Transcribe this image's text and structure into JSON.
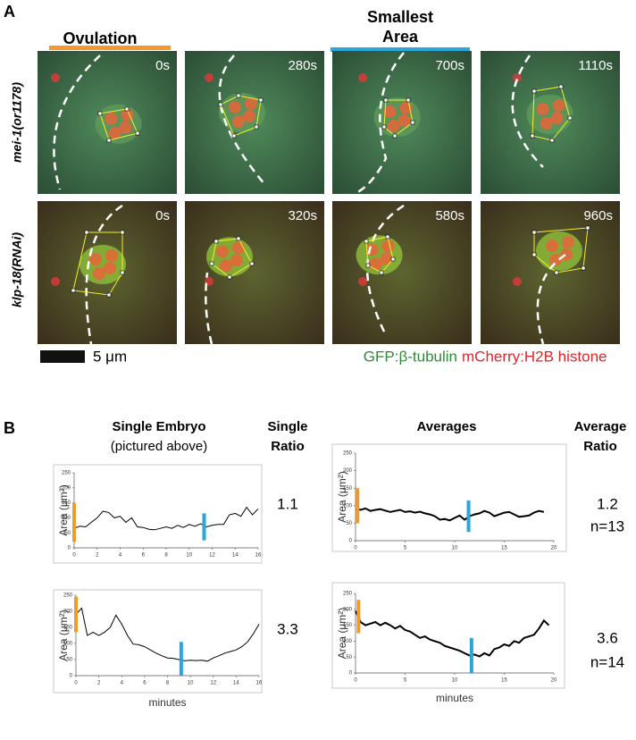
{
  "panel_a": {
    "label": "A",
    "ovulation": "Ovulation",
    "smallest": "Smallest",
    "area": "Area",
    "rows": [
      "mei-1(or1178)",
      "klp-18(RNAi)"
    ],
    "times": [
      [
        "0s",
        "280s",
        "700s",
        "1110s"
      ],
      [
        "0s",
        "320s",
        "580s",
        "960s"
      ]
    ],
    "scale_label": "5 μm",
    "legend_green": "GFP:β-tubulin",
    "legend_red": "mCherry:H2B histone"
  },
  "panel_b": {
    "label": "B",
    "single_title": "Single Embryo",
    "single_sub": "(pictured above)",
    "single_ratio_1": "Single",
    "single_ratio_2": "Ratio",
    "avg_title": "Averages",
    "avg_ratio_1": "Average",
    "avg_ratio_2": "Ratio",
    "ratios": [
      [
        "1.1"
      ],
      [
        "1.2",
        "n=13"
      ],
      [
        "3.3"
      ],
      [
        "3.6",
        "n=14"
      ]
    ]
  },
  "chart_data": [
    {
      "type": "line",
      "ylabel": "Area (μm²)",
      "color": "#000000",
      "x": [
        0,
        0.5,
        1,
        1.5,
        2,
        2.5,
        3,
        3.5,
        4,
        4.5,
        5,
        5.5,
        6,
        6.5,
        7,
        7.5,
        8,
        8.5,
        9,
        9.5,
        10,
        10.5,
        11,
        11.5,
        12,
        12.5,
        13,
        13.5,
        14,
        14.5,
        15,
        15.5,
        16
      ],
      "values": [
        65,
        72,
        70,
        85,
        100,
        122,
        118,
        100,
        105,
        85,
        100,
        70,
        68,
        62,
        60,
        65,
        70,
        65,
        75,
        68,
        78,
        72,
        80,
        70,
        75,
        78,
        78,
        110,
        115,
        105,
        135,
        110,
        130
      ],
      "xlim": [
        0,
        16
      ],
      "xticks": [
        0,
        2,
        4,
        6,
        8,
        10,
        12,
        14,
        16
      ],
      "ylim": [
        0,
        250
      ],
      "yticks": [
        0,
        50,
        100,
        150,
        200,
        250
      ],
      "markers": [
        {
          "x": 0,
          "y": [
            20,
            150
          ],
          "color": "#f39a2e"
        },
        {
          "x": 11.3,
          "y": [
            25,
            115
          ],
          "color": "#2aa6d9"
        }
      ]
    },
    {
      "type": "line",
      "ylabel": "Area (μm²)",
      "color": "#000000",
      "x": [
        0,
        0.5,
        1,
        1.5,
        2,
        2.5,
        3,
        3.5,
        4,
        4.5,
        5,
        5.5,
        6,
        6.5,
        7,
        7.5,
        8,
        8.5,
        9,
        9.5,
        10,
        10.5,
        11,
        11.5,
        12,
        12.5,
        13,
        13.5,
        14,
        14.5,
        15,
        15.5,
        16,
        16.5,
        17,
        17.5,
        18,
        18.5,
        19
      ],
      "values": [
        90,
        88,
        92,
        85,
        88,
        90,
        86,
        82,
        85,
        88,
        82,
        84,
        80,
        83,
        78,
        75,
        70,
        60,
        62,
        58,
        65,
        72,
        60,
        70,
        75,
        78,
        85,
        80,
        70,
        75,
        80,
        82,
        75,
        68,
        70,
        72,
        80,
        85,
        82
      ],
      "xlim": [
        0,
        20
      ],
      "xticks": [
        0,
        5,
        10,
        15,
        20
      ],
      "ylim": [
        0,
        250
      ],
      "yticks": [
        0,
        50,
        100,
        150,
        200,
        250
      ],
      "markers": [
        {
          "x": 0.2,
          "y": [
            50,
            150
          ],
          "color": "#f39a2e"
        },
        {
          "x": 11.4,
          "y": [
            25,
            115
          ],
          "color": "#2aa6d9"
        }
      ]
    },
    {
      "type": "line",
      "ylabel": "Area (μm²)",
      "xlabel": "minutes",
      "color": "#000000",
      "x": [
        0,
        0.5,
        1,
        1.5,
        2,
        2.5,
        3,
        3.5,
        4,
        4.5,
        5,
        5.5,
        6,
        6.5,
        7,
        7.5,
        8,
        8.5,
        9,
        9.5,
        10,
        10.5,
        11,
        11.5,
        12,
        12.5,
        13,
        13.5,
        14,
        14.5,
        15,
        15.5,
        16
      ],
      "values": [
        190,
        210,
        125,
        135,
        125,
        135,
        150,
        188,
        160,
        125,
        98,
        96,
        90,
        80,
        70,
        62,
        55,
        54,
        50,
        46,
        48,
        47,
        48,
        45,
        55,
        62,
        70,
        75,
        80,
        90,
        105,
        130,
        160
      ],
      "xlim": [
        0,
        16
      ],
      "xticks": [
        0,
        2,
        4,
        6,
        8,
        10,
        12,
        14,
        16
      ],
      "ylim": [
        0,
        250
      ],
      "yticks": [
        0,
        50,
        100,
        150,
        200,
        250
      ],
      "markers": [
        {
          "x": 0,
          "y": [
            135,
            245
          ],
          "color": "#f39a2e"
        },
        {
          "x": 9.2,
          "y": [
            0,
            105
          ],
          "color": "#2aa6d9"
        }
      ]
    },
    {
      "type": "line",
      "ylabel": "Area (μm²)",
      "xlabel": "minutes",
      "color": "#000000",
      "x": [
        0,
        0.5,
        1,
        1.5,
        2,
        2.5,
        3,
        3.5,
        4,
        4.5,
        5,
        5.5,
        6,
        6.5,
        7,
        7.5,
        8,
        8.5,
        9,
        9.5,
        10,
        10.5,
        11,
        11.5,
        12,
        12.5,
        13,
        13.5,
        14,
        14.5,
        15,
        15.5,
        16,
        16.5,
        17,
        17.5,
        18,
        18.5,
        19,
        19.5
      ],
      "values": [
        195,
        160,
        150,
        155,
        160,
        150,
        158,
        150,
        140,
        148,
        135,
        130,
        120,
        110,
        115,
        105,
        100,
        95,
        85,
        80,
        75,
        70,
        62,
        55,
        58,
        52,
        62,
        55,
        75,
        80,
        90,
        85,
        100,
        95,
        110,
        115,
        120,
        140,
        165,
        150
      ],
      "xlim": [
        0,
        20
      ],
      "xticks": [
        0,
        5,
        10,
        15,
        20
      ],
      "ylim": [
        0,
        250
      ],
      "yticks": [
        0,
        50,
        100,
        150,
        200,
        250
      ],
      "markers": [
        {
          "x": 0.3,
          "y": [
            125,
            230
          ],
          "color": "#f39a2e"
        },
        {
          "x": 11.7,
          "y": [
            0,
            110
          ],
          "color": "#2aa6d9"
        }
      ]
    }
  ]
}
